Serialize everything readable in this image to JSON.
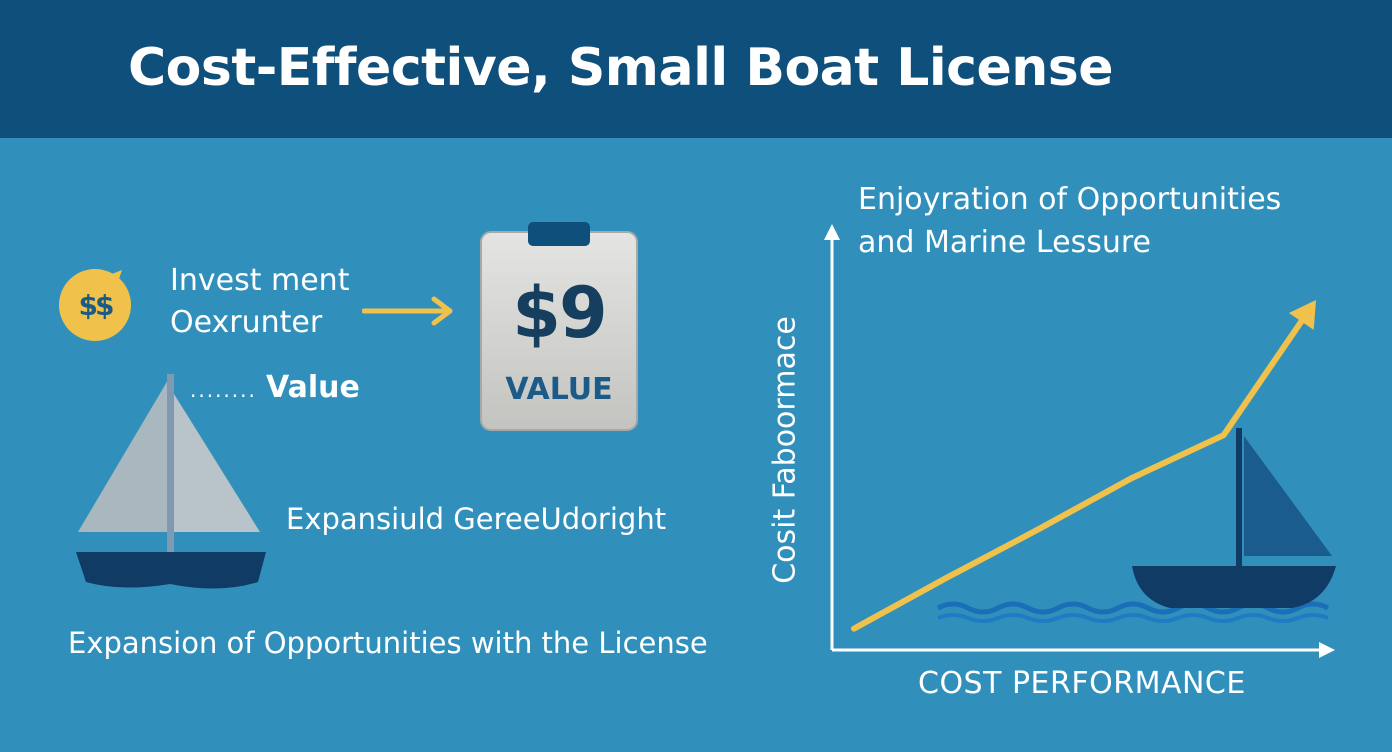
{
  "header": {
    "title": "Cost-Effective, Small Boat License"
  },
  "investment": {
    "coin_label": "$$",
    "text_line1": "Invest ment",
    "text_line2": "Oexrunter"
  },
  "price_tag": {
    "price": "$9",
    "label": "VALUE"
  },
  "sailboat_callout": {
    "dots": "........",
    "label": "Value"
  },
  "labels": {
    "middle": "Expansiuld GereeUdoright",
    "bottom": "Expansion of Opportunities with the License"
  },
  "chart_data": {
    "type": "line",
    "title_line1": "Enjoyration of Opportunities",
    "title_line2": "and Marine Lessure",
    "xlabel": "Cost Performance",
    "ylabel": "Cosit Faboormace",
    "x": [
      0,
      1,
      2,
      3,
      4,
      5
    ],
    "series": [
      {
        "values": [
          0.05,
          0.32,
          0.58,
          0.85,
          1.08,
          1.8
        ]
      }
    ],
    "colors": {
      "line": "#f1c24b",
      "axis": "#ffffff",
      "boat": "#0f3b64",
      "sail": "#1b5c8e",
      "water": "#1a6fb8"
    }
  },
  "colors": {
    "background": "#3190bb",
    "banner": "#0f4f7b",
    "accent_yellow": "#f1c24b",
    "navy": "#0f3b64"
  }
}
